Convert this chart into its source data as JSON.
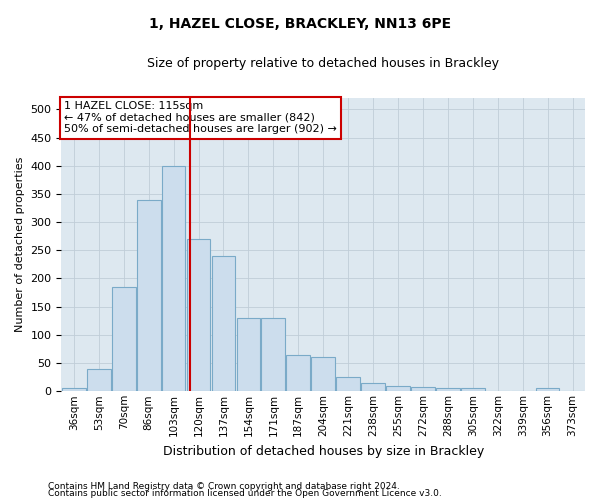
{
  "title": "1, HAZEL CLOSE, BRACKLEY, NN13 6PE",
  "subtitle": "Size of property relative to detached houses in Brackley",
  "xlabel": "Distribution of detached houses by size in Brackley",
  "ylabel": "Number of detached properties",
  "footnote1": "Contains HM Land Registry data © Crown copyright and database right 2024.",
  "footnote2": "Contains public sector information licensed under the Open Government Licence v3.0.",
  "bar_color": "#ccdded",
  "bar_edge_color": "#7aaac8",
  "background_color": "#dde8f0",
  "annotation_text": "1 HAZEL CLOSE: 115sqm\n← 47% of detached houses are smaller (842)\n50% of semi-detached houses are larger (902) →",
  "vline_x": 115,
  "vline_color": "#cc0000",
  "categories": [
    "36sqm",
    "53sqm",
    "70sqm",
    "86sqm",
    "103sqm",
    "120sqm",
    "137sqm",
    "154sqm",
    "171sqm",
    "187sqm",
    "204sqm",
    "221sqm",
    "238sqm",
    "255sqm",
    "272sqm",
    "288sqm",
    "305sqm",
    "322sqm",
    "339sqm",
    "356sqm",
    "373sqm"
  ],
  "bin_edges": [
    27,
    44,
    61,
    78,
    95,
    112,
    129,
    146,
    163,
    180,
    197,
    214,
    231,
    248,
    265,
    282,
    299,
    316,
    333,
    350,
    367,
    384
  ],
  "values": [
    5,
    40,
    185,
    340,
    400,
    270,
    240,
    130,
    130,
    65,
    60,
    25,
    15,
    10,
    8,
    5,
    5,
    1,
    1,
    5,
    1
  ],
  "ylim": [
    0,
    520
  ],
  "yticks": [
    0,
    50,
    100,
    150,
    200,
    250,
    300,
    350,
    400,
    450,
    500
  ],
  "annotation_box_color": "#ffffff",
  "annotation_box_edge": "#cc0000",
  "grid_color": "#c0cdd8",
  "title_fontsize": 10,
  "subtitle_fontsize": 9,
  "xlabel_fontsize": 9,
  "ylabel_fontsize": 8,
  "tick_fontsize": 8,
  "xtick_fontsize": 7.5,
  "footnote_fontsize": 6.5,
  "annotation_fontsize": 8
}
